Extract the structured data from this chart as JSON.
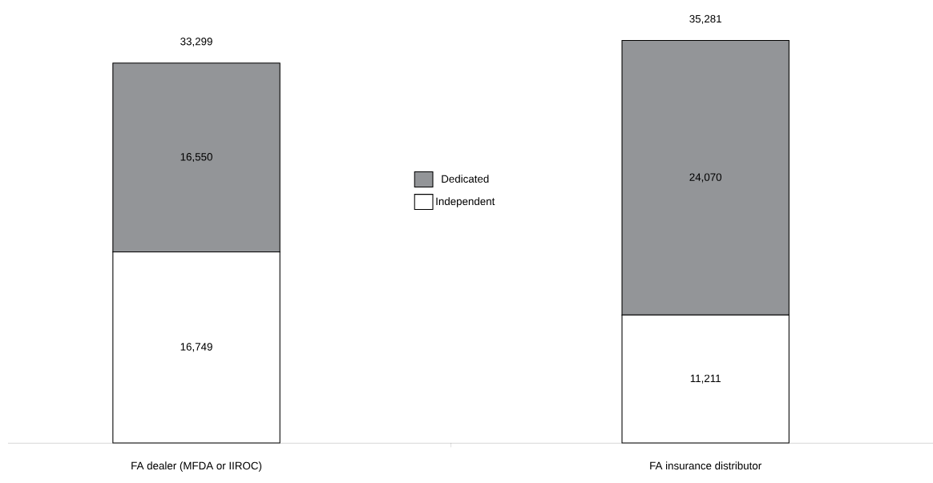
{
  "chart_data": {
    "type": "bar",
    "stacked": true,
    "categories": [
      "FA dealer (MFDA or IIROC)",
      "FA insurance distributor"
    ],
    "series": [
      {
        "name": "Independent",
        "color": "#ffffff",
        "values": [
          16749,
          11211
        ],
        "value_labels": [
          "16,749",
          "11,211"
        ]
      },
      {
        "name": "Dedicated",
        "color": "#939598",
        "values": [
          16550,
          24070
        ],
        "value_labels": [
          "16,550",
          "24,070"
        ]
      }
    ],
    "totals": [
      "33,299",
      "35,281"
    ],
    "legend": "top"
  }
}
